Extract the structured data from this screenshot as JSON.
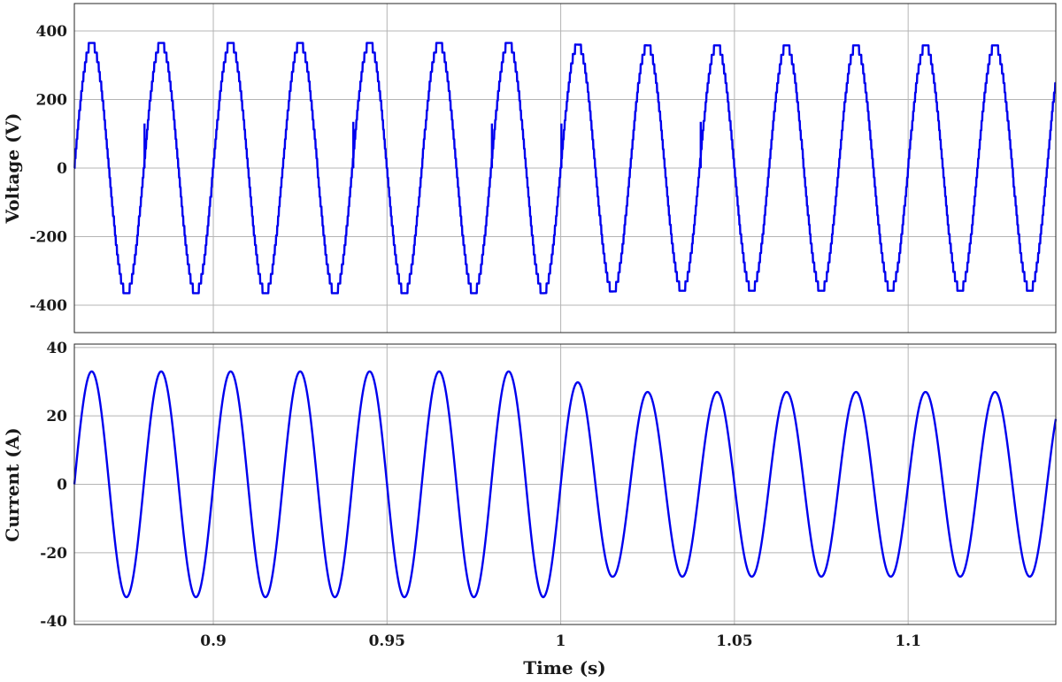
{
  "chart_data": [
    {
      "type": "line",
      "title": "",
      "xlabel": "",
      "ylabel": "Voltage (V)",
      "xlim": [
        0.86,
        1.1425
      ],
      "ylim": [
        -480,
        480
      ],
      "yticks": [
        -400,
        -200,
        0,
        200,
        400
      ],
      "ytick_labels": [
        "-400",
        "-200",
        "0",
        "200",
        "400"
      ],
      "xticks": [
        0.9,
        0.95,
        1,
        1.05,
        1.1
      ],
      "xtick_labels": [],
      "grid": true,
      "color": "#0000ee",
      "series": [
        {
          "frequency_hz": 50,
          "amplitude": 365,
          "phase_deg": 0,
          "switching_steps": 13,
          "points": [
            {
              "x": 0.865,
              "y": 365
            },
            {
              "x": 0.875,
              "y": -365
            },
            {
              "x": 0.885,
              "y": 365
            },
            {
              "x": 0.895,
              "y": -365
            },
            {
              "x": 0.905,
              "y": 365
            },
            {
              "x": 0.915,
              "y": -365
            },
            {
              "x": 0.925,
              "y": 365
            },
            {
              "x": 0.935,
              "y": -365
            },
            {
              "x": 0.945,
              "y": 365
            },
            {
              "x": 0.955,
              "y": -365
            },
            {
              "x": 0.965,
              "y": 365
            },
            {
              "x": 0.975,
              "y": -365
            },
            {
              "x": 0.985,
              "y": 365
            },
            {
              "x": 0.995,
              "y": -365
            },
            {
              "x": 1.005,
              "y": 360
            },
            {
              "x": 1.015,
              "y": -360
            },
            {
              "x": 1.025,
              "y": 358
            },
            {
              "x": 1.035,
              "y": -358
            },
            {
              "x": 1.045,
              "y": 358
            },
            {
              "x": 1.055,
              "y": -358
            },
            {
              "x": 1.065,
              "y": 358
            },
            {
              "x": 1.075,
              "y": -358
            },
            {
              "x": 1.085,
              "y": 358
            },
            {
              "x": 1.095,
              "y": -358
            },
            {
              "x": 1.105,
              "y": 358
            },
            {
              "x": 1.115,
              "y": -358
            },
            {
              "x": 1.125,
              "y": 358
            },
            {
              "x": 1.135,
              "y": -358
            }
          ],
          "spikes": [
            {
              "x": 0.8802,
              "y": 130
            },
            {
              "x": 0.9403,
              "y": 135
            },
            {
              "x": 0.9802,
              "y": 130
            },
            {
              "x": 1.0002,
              "y": 130
            },
            {
              "x": 1.0403,
              "y": 135
            }
          ]
        }
      ]
    },
    {
      "type": "line",
      "title": "",
      "xlabel": "Time (s)",
      "ylabel": "Current (A)",
      "xlim": [
        0.86,
        1.1425
      ],
      "ylim": [
        -41,
        41
      ],
      "yticks": [
        -40,
        -20,
        0,
        20,
        40
      ],
      "ytick_labels": [
        "-40",
        "-20",
        "0",
        "20",
        "40"
      ],
      "xticks": [
        0.9,
        0.95,
        1,
        1.05,
        1.1
      ],
      "xtick_labels": [
        "0.9",
        "0.95",
        "1",
        "1.05",
        "1.1"
      ],
      "grid": true,
      "color": "#0000ee",
      "series": [
        {
          "frequency_hz": 50,
          "phase_deg": 0,
          "points": [
            {
              "x": 0.865,
              "y": 33
            },
            {
              "x": 0.875,
              "y": -33
            },
            {
              "x": 0.885,
              "y": 33
            },
            {
              "x": 0.895,
              "y": -33
            },
            {
              "x": 0.905,
              "y": 33
            },
            {
              "x": 0.915,
              "y": -33
            },
            {
              "x": 0.925,
              "y": 33
            },
            {
              "x": 0.935,
              "y": -33
            },
            {
              "x": 0.945,
              "y": 33
            },
            {
              "x": 0.955,
              "y": -33
            },
            {
              "x": 0.965,
              "y": 33
            },
            {
              "x": 0.975,
              "y": -33
            },
            {
              "x": 0.985,
              "y": 33
            },
            {
              "x": 0.995,
              "y": -33
            },
            {
              "x": 1.005,
              "y": 29.8
            },
            {
              "x": 1.015,
              "y": -27
            },
            {
              "x": 1.025,
              "y": 27
            },
            {
              "x": 1.035,
              "y": -27
            },
            {
              "x": 1.045,
              "y": 27
            },
            {
              "x": 1.055,
              "y": -27
            },
            {
              "x": 1.065,
              "y": 27
            },
            {
              "x": 1.075,
              "y": -27
            },
            {
              "x": 1.085,
              "y": 27
            },
            {
              "x": 1.095,
              "y": -27
            },
            {
              "x": 1.105,
              "y": 27
            },
            {
              "x": 1.115,
              "y": -27
            },
            {
              "x": 1.125,
              "y": 27
            },
            {
              "x": 1.135,
              "y": -27
            }
          ]
        }
      ]
    }
  ]
}
